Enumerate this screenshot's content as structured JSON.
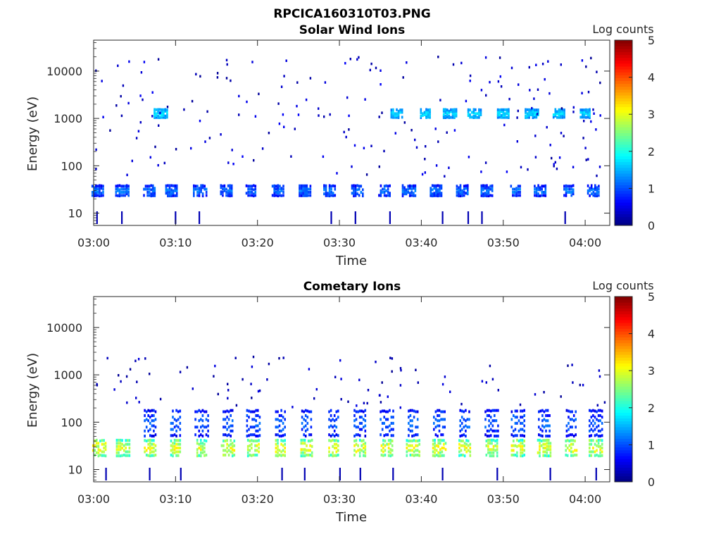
{
  "figure_title": "RPCICA160310T03.PNG",
  "colorbar": {
    "label": "Log counts",
    "ticks": [
      "0",
      "1",
      "2",
      "3",
      "4",
      "5"
    ],
    "range": [
      0,
      5
    ],
    "colormap": "jet"
  },
  "chart_data": [
    {
      "type": "heatmap",
      "title": "Solar Wind Ions",
      "xlabel": "Time",
      "ylabel": "Energy (eV)",
      "yscale": "log",
      "ylim": [
        5.5,
        45000
      ],
      "xlim": [
        "03:00",
        "04:03"
      ],
      "xticks": [
        "03:00",
        "03:10",
        "03:20",
        "03:30",
        "03:40",
        "03:50",
        "04:00"
      ],
      "yticks": [
        "10",
        "100",
        "1000",
        "10000"
      ],
      "z_range": [
        0,
        5
      ],
      "z_label": "Log counts",
      "bands": [
        {
          "energy_range_eV": [
            22,
            40
          ],
          "log_counts": [
            0.3,
            1.3
          ],
          "times_min": [
            0.5,
            3.5,
            6.8,
            9.5,
            13.0,
            16.2,
            19.2,
            22.5,
            25.8,
            28.8,
            32.2,
            35.5,
            38.5,
            41.8,
            45.0,
            48.0,
            51.5,
            54.5,
            58.0,
            61.0
          ]
        },
        {
          "energy_range_eV": [
            1000,
            1600
          ],
          "log_counts": [
            1.0,
            1.8
          ],
          "times_min": [
            8.2,
            37.0,
            40.5,
            43.5,
            46.5,
            50.0,
            53.5,
            56.8,
            60.0
          ]
        }
      ],
      "scattered_counts": {
        "energy_range_eV": [
          60,
          20000
        ],
        "log_counts": [
          0.1,
          0.6
        ]
      }
    },
    {
      "type": "heatmap",
      "title": "Cometary Ions",
      "xlabel": "Time",
      "ylabel": "Energy (eV)",
      "yscale": "log",
      "ylim": [
        5.5,
        45000
      ],
      "xlim": [
        "03:00",
        "04:03"
      ],
      "xticks": [
        "03:00",
        "03:10",
        "03:20",
        "03:30",
        "03:40",
        "03:50",
        "04:00"
      ],
      "yticks": [
        "10",
        "100",
        "1000",
        "10000"
      ],
      "z_range": [
        0,
        5
      ],
      "z_label": "Log counts",
      "bands": [
        {
          "energy_range_eV": [
            18,
            45
          ],
          "log_counts": [
            1.5,
            3.2
          ],
          "times_min": [
            0.7,
            3.6,
            6.9,
            10.0,
            13.2,
            16.4,
            19.5,
            22.8,
            26.0,
            29.3,
            32.5,
            35.8,
            39.0,
            42.2,
            45.3,
            48.6,
            51.8,
            55.0,
            58.3,
            61.3
          ]
        },
        {
          "energy_range_eV": [
            45,
            200
          ],
          "log_counts": [
            0.2,
            1.2
          ],
          "times_min": [
            6.9,
            10.0,
            13.2,
            16.4,
            19.5,
            22.8,
            26.0,
            29.3,
            32.5,
            35.8,
            39.0,
            42.2,
            45.3,
            48.6,
            51.8,
            55.0,
            58.3,
            61.3
          ]
        }
      ],
      "scattered_counts": {
        "energy_range_eV": [
          200,
          2500
        ],
        "log_counts": [
          0.1,
          0.5
        ]
      }
    }
  ]
}
